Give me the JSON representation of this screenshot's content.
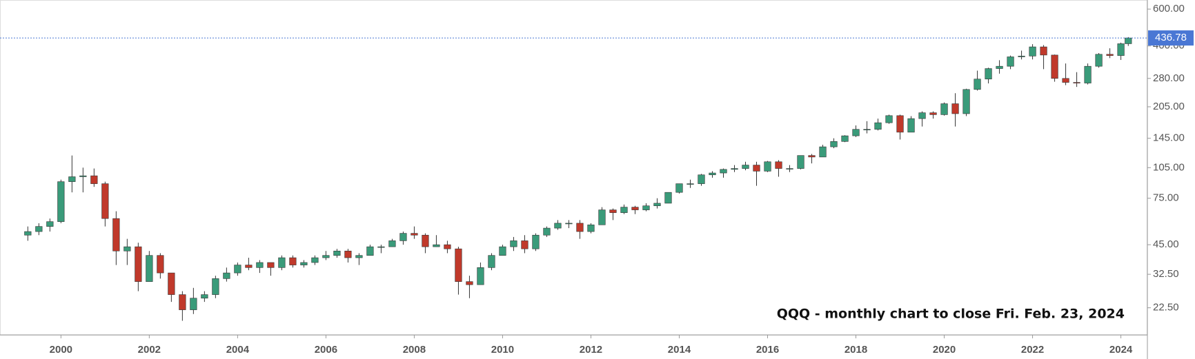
{
  "chart_data": {
    "type": "candlestick",
    "annotation": "QQQ - monthly chart to close Fri. Feb. 23, 2024",
    "log_scale": true,
    "up_color": "#3a9b7a",
    "down_color": "#c0392b",
    "last_value": 436.78,
    "last_color": "#4a77d4",
    "x": [
      1999.25,
      1999.5,
      1999.75,
      2000.0,
      2000.25,
      2000.5,
      2000.75,
      2001.0,
      2001.25,
      2001.5,
      2001.75,
      2002.0,
      2002.25,
      2002.5,
      2002.75,
      2003.0,
      2003.25,
      2003.5,
      2003.75,
      2004.0,
      2004.25,
      2004.5,
      2004.75,
      2005.0,
      2005.25,
      2005.5,
      2005.75,
      2006.0,
      2006.25,
      2006.5,
      2006.75,
      2007.0,
      2007.25,
      2007.5,
      2007.75,
      2008.0,
      2008.25,
      2008.5,
      2008.75,
      2009.0,
      2009.25,
      2009.5,
      2009.75,
      2010.0,
      2010.25,
      2010.5,
      2010.75,
      2011.0,
      2011.25,
      2011.5,
      2011.75,
      2012.0,
      2012.25,
      2012.5,
      2012.75,
      2013.0,
      2013.25,
      2013.5,
      2013.75,
      2014.0,
      2014.25,
      2014.5,
      2014.75,
      2015.0,
      2015.25,
      2015.5,
      2015.75,
      2016.0,
      2016.25,
      2016.5,
      2016.75,
      2017.0,
      2017.25,
      2017.5,
      2017.75,
      2018.0,
      2018.25,
      2018.5,
      2018.75,
      2019.0,
      2019.25,
      2019.5,
      2019.75,
      2020.0,
      2020.25,
      2020.5,
      2020.75,
      2021.0,
      2021.25,
      2021.5,
      2021.75,
      2022.0,
      2022.25,
      2022.5,
      2022.75,
      2023.0,
      2023.25,
      2023.5,
      2023.75,
      2024.0,
      2024.167
    ],
    "open": [
      50,
      52,
      55,
      58,
      90,
      95,
      96,
      88,
      60,
      42,
      44,
      30,
      40,
      33,
      26,
      22,
      25,
      26,
      31,
      33,
      36,
      35,
      37,
      35,
      39,
      36,
      37,
      39,
      40,
      42,
      39,
      40,
      44,
      44,
      47,
      51,
      50,
      44,
      45,
      43,
      30,
      29,
      35,
      40,
      44,
      47,
      43,
      50,
      54,
      57,
      57,
      52,
      56,
      66,
      64,
      68,
      66,
      69,
      71,
      80,
      88,
      88,
      97,
      99,
      103,
      104,
      108,
      101,
      112,
      104,
      104,
      120,
      118,
      132,
      140,
      149,
      160,
      160,
      172,
      186,
      155,
      180,
      192,
      188,
      212,
      190,
      248,
      278,
      312,
      320,
      355,
      358,
      396,
      362,
      280,
      268,
      266,
      320,
      365,
      360,
      410
    ],
    "high": [
      55,
      57,
      60,
      92,
      120,
      105,
      104,
      90,
      65,
      48,
      46,
      42,
      41,
      33,
      27,
      28,
      27,
      32,
      35,
      37,
      39,
      38,
      37,
      40,
      40,
      38,
      40,
      42,
      43,
      43,
      41,
      45,
      45,
      48,
      52,
      55,
      51,
      50,
      47,
      44,
      32,
      37,
      41,
      45,
      49,
      50,
      51,
      55,
      59,
      59,
      59,
      57,
      68,
      67,
      70,
      69,
      71,
      75,
      80,
      88,
      92,
      98,
      101,
      104,
      108,
      112,
      112,
      113,
      114,
      108,
      120,
      122,
      135,
      145,
      150,
      167,
      175,
      180,
      188,
      188,
      185,
      195,
      195,
      215,
      238,
      250,
      305,
      315,
      342,
      360,
      380,
      408,
      404,
      364,
      330,
      300,
      330,
      370,
      390,
      415,
      441
    ],
    "low": [
      47,
      50,
      52,
      57,
      80,
      80,
      85,
      55,
      36,
      36,
      27,
      30,
      31,
      24,
      19.5,
      21,
      24,
      25,
      30,
      32,
      34,
      33,
      32,
      34,
      35,
      35,
      36,
      38,
      39,
      37,
      36,
      40,
      41,
      44,
      45,
      48,
      41,
      44,
      41,
      26,
      25,
      29,
      34,
      40,
      42,
      41,
      42,
      49,
      53,
      54,
      48,
      51,
      56,
      59,
      63,
      63,
      65,
      67,
      71,
      79,
      84,
      86,
      94,
      94,
      100,
      102,
      86,
      100,
      95,
      100,
      103,
      110,
      118,
      130,
      139,
      147,
      153,
      158,
      170,
      143,
      155,
      165,
      180,
      186,
      165,
      185,
      245,
      265,
      295,
      310,
      345,
      345,
      310,
      270,
      260,
      255,
      262,
      315,
      350,
      343,
      400
    ],
    "close": [
      52,
      55,
      58,
      90,
      95,
      96,
      88,
      60,
      42,
      44,
      30,
      40,
      33,
      26,
      22,
      25,
      26,
      31,
      33,
      36,
      35,
      37,
      35,
      39,
      36,
      37,
      39,
      40,
      42,
      39,
      40,
      44,
      44,
      47,
      51,
      50,
      44,
      45,
      43,
      30,
      29,
      35,
      40,
      44,
      47,
      43,
      50,
      54,
      57,
      57,
      52,
      56,
      66,
      64,
      68,
      66,
      69,
      71,
      80,
      88,
      88,
      97,
      99,
      103,
      104,
      108,
      101,
      112,
      104,
      104,
      120,
      118,
      132,
      140,
      149,
      160,
      160,
      172,
      186,
      155,
      180,
      192,
      188,
      212,
      190,
      248,
      278,
      312,
      320,
      355,
      358,
      396,
      362,
      280,
      268,
      266,
      320,
      365,
      360,
      410,
      436.78
    ],
    "xlim": [
      1998.62,
      2024.6
    ],
    "xticks": [
      2000,
      2002,
      2004,
      2006,
      2008,
      2010,
      2012,
      2014,
      2016,
      2018,
      2020,
      2022,
      2024
    ],
    "ylim": [
      16.7,
      663
    ],
    "yticks": [
      {
        "value": 22.5,
        "label": "22.50"
      },
      {
        "value": 32.5,
        "label": "32.50"
      },
      {
        "value": 45,
        "label": "45.00"
      },
      {
        "value": 75,
        "label": "75.00"
      },
      {
        "value": 105,
        "label": "105.00"
      },
      {
        "value": 145,
        "label": "145.00"
      },
      {
        "value": 205,
        "label": "205.00"
      },
      {
        "value": 280,
        "label": "280.00"
      },
      {
        "value": 400,
        "label": "400.00"
      },
      {
        "value": 600,
        "label": "600.00"
      }
    ]
  }
}
